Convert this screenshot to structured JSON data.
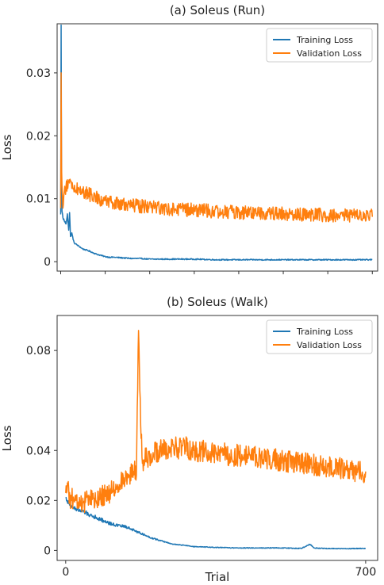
{
  "chart_data": [
    {
      "type": "line",
      "title": "(a) Soleus (Run)",
      "xlabel": "",
      "ylabel": "Loss",
      "xlim": [
        -8,
        712
      ],
      "ylim": [
        -0.0015,
        0.0378
      ],
      "yticks": [
        0,
        0.01,
        0.02,
        0.03
      ],
      "ytick_labels": [
        "0",
        "0.01",
        "0.02",
        "0.03"
      ],
      "xticks": [
        0,
        100,
        200,
        300,
        400,
        500,
        600,
        700
      ],
      "xtick_labels": [
        "",
        "",
        "",
        "",
        "",
        "",
        "",
        ""
      ],
      "legend": "top-right",
      "grid": false,
      "series": [
        {
          "name": "Training Loss",
          "color": "#1f77b4",
          "x": [
            0,
            1,
            2,
            3,
            5,
            8,
            12,
            15,
            18,
            20,
            22,
            25,
            30,
            40,
            50,
            60,
            70,
            80,
            90,
            100,
            110,
            120,
            140,
            160,
            180,
            200,
            250,
            300,
            350,
            400,
            450,
            500,
            550,
            600,
            650,
            700
          ],
          "y": [
            0.0075,
            0.0376,
            0.012,
            0.008,
            0.007,
            0.0065,
            0.006,
            0.0076,
            0.005,
            0.0078,
            0.004,
            0.0045,
            0.003,
            0.0025,
            0.002,
            0.0018,
            0.0015,
            0.0012,
            0.001,
            0.0008,
            0.0007,
            0.0007,
            0.0006,
            0.0005,
            0.0005,
            0.0004,
            0.0004,
            0.0004,
            0.0003,
            0.0003,
            0.0003,
            0.0003,
            0.0003,
            0.0003,
            0.0003,
            0.0003
          ]
        },
        {
          "name": "Validation Loss",
          "color": "#ff7f0e",
          "x": [
            0,
            1,
            2,
            3,
            5,
            8,
            12,
            20,
            30,
            40,
            60,
            80,
            100,
            120,
            150,
            200,
            250,
            300,
            350,
            400,
            450,
            500,
            550,
            600,
            650,
            700
          ],
          "y": [
            0.0085,
            0.03,
            0.015,
            0.012,
            0.0085,
            0.011,
            0.012,
            0.0125,
            0.0118,
            0.0115,
            0.0108,
            0.0102,
            0.0096,
            0.0092,
            0.009,
            0.0087,
            0.0084,
            0.0082,
            0.008,
            0.0078,
            0.0078,
            0.0076,
            0.0075,
            0.0074,
            0.0073,
            0.0073
          ]
        }
      ]
    },
    {
      "type": "line",
      "title": "(b) Soleus (Walk)",
      "xlabel": "Trial",
      "ylabel": "Loss",
      "xlim": [
        -20,
        728
      ],
      "ylim": [
        -0.004,
        0.094
      ],
      "yticks": [
        0,
        0.02,
        0.04,
        0.08
      ],
      "ytick_labels": [
        "0",
        "0.02",
        "0.04",
        "0.08"
      ],
      "xticks": [
        0,
        700
      ],
      "xtick_labels": [
        "0",
        "700"
      ],
      "legend": "top-right",
      "grid": false,
      "series": [
        {
          "name": "Training Loss",
          "color": "#1f77b4",
          "x": [
            0,
            10,
            20,
            40,
            60,
            80,
            100,
            120,
            140,
            160,
            180,
            200,
            220,
            250,
            280,
            300,
            350,
            400,
            450,
            500,
            550,
            570,
            580,
            600,
            650,
            700
          ],
          "y": [
            0.021,
            0.018,
            0.017,
            0.0155,
            0.014,
            0.0125,
            0.011,
            0.01,
            0.0095,
            0.008,
            0.0065,
            0.005,
            0.004,
            0.0025,
            0.002,
            0.0015,
            0.0012,
            0.001,
            0.001,
            0.001,
            0.0008,
            0.0025,
            0.001,
            0.0008,
            0.0007,
            0.0008
          ]
        },
        {
          "name": "Validation Loss",
          "color": "#ff7f0e",
          "x": [
            0,
            5,
            10,
            20,
            40,
            60,
            80,
            100,
            120,
            140,
            160,
            165,
            170,
            175,
            180,
            200,
            220,
            250,
            280,
            300,
            350,
            400,
            450,
            500,
            550,
            600,
            650,
            700
          ],
          "y": [
            0.023,
            0.026,
            0.021,
            0.02,
            0.019,
            0.02,
            0.021,
            0.023,
            0.026,
            0.029,
            0.032,
            0.03,
            0.088,
            0.05,
            0.036,
            0.038,
            0.04,
            0.041,
            0.041,
            0.04,
            0.039,
            0.038,
            0.037,
            0.036,
            0.035,
            0.034,
            0.033,
            0.031
          ]
        }
      ]
    }
  ]
}
